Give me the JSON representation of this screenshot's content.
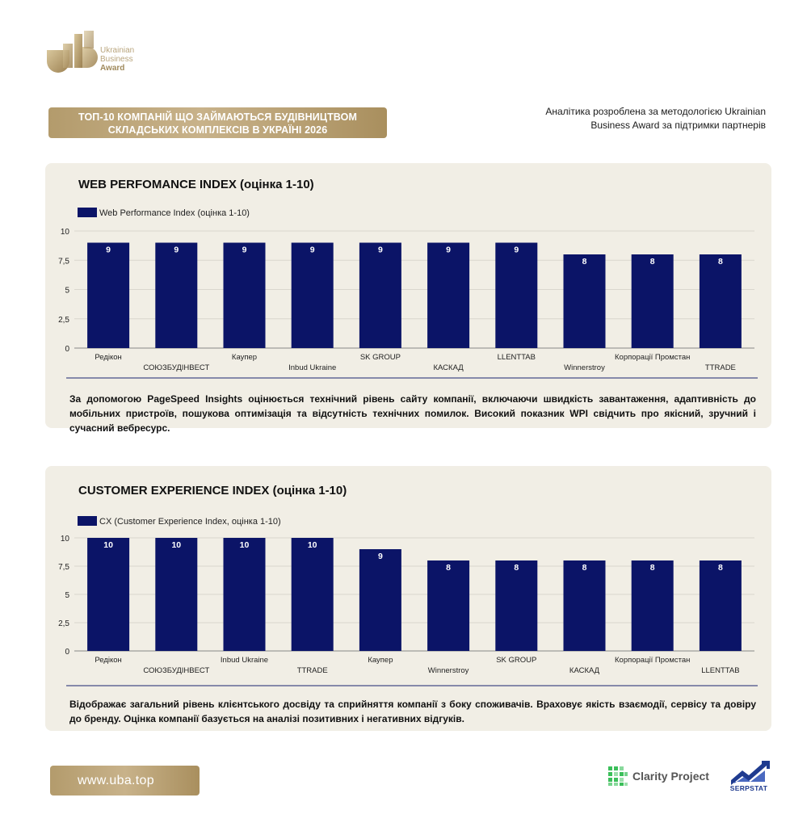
{
  "brand": {
    "logo_line1": "Ukrainian",
    "logo_line2": "Business",
    "logo_line3": "Award",
    "gold": "#b39b6c"
  },
  "header": {
    "title_line1": "ТОП-10 КОМПАНІЙ ЩО ЗАЙМАЮТЬСЯ БУДІВНИЦТВОМ",
    "title_line2": "СКЛАДСЬКИХ КОМПЛЕКСІВ В УКРАЇНІ 2026",
    "methodology_line1": "Аналітика розроблена за методологією Ukrainian",
    "methodology_line2": "Business Award за підтримки партнерів"
  },
  "sections": [
    {
      "title": "WEB PERFOMANCE INDEX (оцінка 1-10)",
      "description": "За допомогою PageSpeed Insights оцінюється технічний рівень сайту компанії, включаючи швидкість завантаження, адаптивність до мобільних пристроїв, пошукова оптимізація та відсутність технічних помилок. Високий показник WPI свідчить про якісний, зручний і сучасний вебресурс."
    },
    {
      "title": "CUSTOMER EXPERIENCE INDEX (оцінка 1-10)",
      "description": "Відображає загальний рівень клієнтського досвіду та сприйняття компанії з боку споживачів. Враховує якість взаємодії, сервісу та довіру до бренду. Оцінка компанії базується на аналізі позитивних і негативних відгуків."
    }
  ],
  "chart_data": [
    {
      "type": "bar",
      "legend": "Web Performance Index (оцінка 1-10)",
      "legend_position": "top-left",
      "categories": [
        "Редікон",
        "СОЮЗБУДІНВЕСТ",
        "Каупер",
        "Inbud Ukraine",
        "SK GROUP",
        "КАСКАД",
        "LLENTTAB",
        "Winnerstroy",
        "Корпорації Промстан",
        "TTRADE"
      ],
      "values": [
        9,
        9,
        9,
        9,
        9,
        9,
        9,
        8,
        8,
        8
      ],
      "ylim": [
        0,
        10
      ],
      "yticks": [
        "0",
        "2,5",
        "5",
        "7,5",
        "10"
      ],
      "grid": true,
      "bar_color": "#0b1467"
    },
    {
      "type": "bar",
      "legend": "CX (Customer Experience Index, оцінка 1-10)",
      "legend_position": "top-left",
      "categories": [
        "Редікон",
        "СОЮЗБУДІНВЕСТ",
        "Inbud Ukraine",
        "TTRADE",
        "Каупер",
        "Winnerstroy",
        "SK GROUP",
        "КАСКАД",
        "Корпорації Промстан",
        "LLENTTAB"
      ],
      "values": [
        10,
        10,
        10,
        10,
        9,
        8,
        8,
        8,
        8,
        8
      ],
      "ylim": [
        0,
        10
      ],
      "yticks": [
        "0",
        "2,5",
        "5",
        "7,5",
        "10"
      ],
      "grid": true,
      "bar_color": "#0b1467"
    }
  ],
  "footer": {
    "website": "www.uba.top",
    "partner1": "Clarity Project",
    "partner2": "SERPSTAT"
  }
}
